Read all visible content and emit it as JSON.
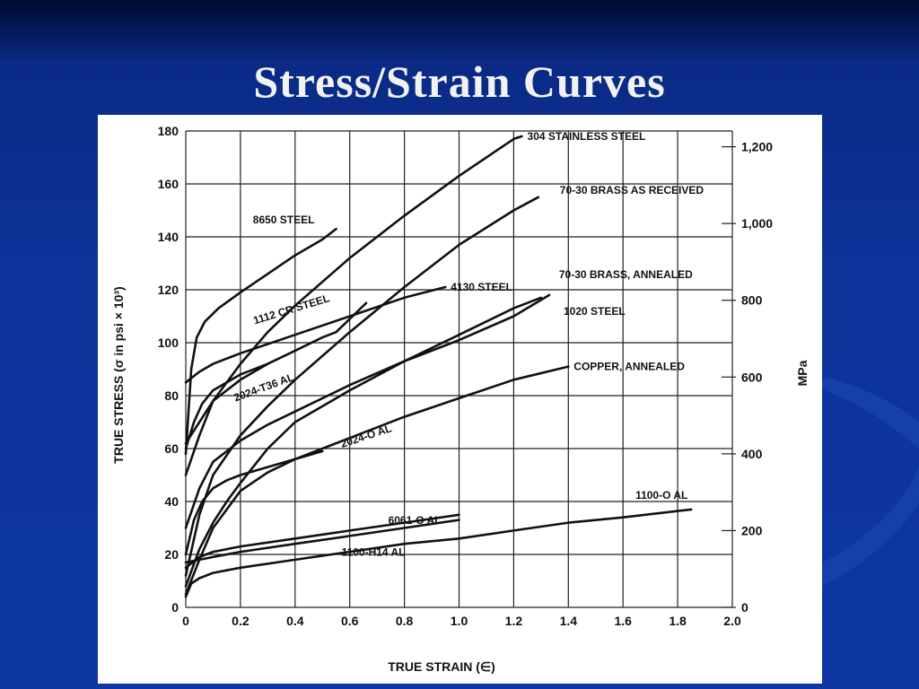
{
  "slide": {
    "title": "Stress/Strain Curves"
  },
  "chart_data": {
    "type": "line",
    "xlabel": "TRUE STRAIN (∈)",
    "ylabel": "TRUE STRESS (σ in psi × 10³)",
    "y2label": "MPa",
    "xlim": [
      0,
      2.0
    ],
    "ylim": [
      0,
      180
    ],
    "x_ticks": [
      "0",
      "0.2",
      "0.4",
      "0.6",
      "0.8",
      "1.0",
      "1.2",
      "1.4",
      "1.6",
      "1.8",
      "2.0"
    ],
    "y_ticks": [
      "0",
      "20",
      "40",
      "60",
      "80",
      "100",
      "120",
      "140",
      "160",
      "180"
    ],
    "y2_ticks": [
      "0",
      "200",
      "400",
      "600",
      "800",
      "1,000",
      "1,200"
    ],
    "grid": true,
    "series": [
      {
        "name": "304 STAINLESS STEEL",
        "x": [
          0,
          0.05,
          0.1,
          0.2,
          0.3,
          0.4,
          0.6,
          0.8,
          1.0,
          1.2,
          1.23
        ],
        "y": [
          50,
          65,
          78,
          92,
          104,
          114,
          132,
          148,
          163,
          177,
          178
        ]
      },
      {
        "name": "8650 STEEL",
        "x": [
          0,
          0.02,
          0.04,
          0.07,
          0.12,
          0.2,
          0.3,
          0.4,
          0.5,
          0.55
        ],
        "y": [
          58,
          90,
          102,
          108,
          113,
          119,
          126,
          133,
          139,
          143
        ]
      },
      {
        "name": "70-30 BRASS AS RECEIVED",
        "x": [
          0,
          0.05,
          0.1,
          0.2,
          0.3,
          0.4,
          0.6,
          0.8,
          1.0,
          1.2,
          1.29
        ],
        "y": [
          12,
          35,
          50,
          65,
          76,
          86,
          104,
          121,
          137,
          150,
          155
        ]
      },
      {
        "name": "70-30 BRASS, ANNEALED",
        "x": [
          0,
          0.05,
          0.1,
          0.15,
          0.2,
          0.3,
          0.4,
          0.6,
          0.8,
          1.0,
          1.2,
          1.3
        ],
        "y": [
          8,
          22,
          32,
          40,
          47,
          60,
          70,
          82,
          93,
          103,
          113,
          117
        ]
      },
      {
        "name": "4130 STEEL",
        "x": [
          0,
          0.05,
          0.1,
          0.2,
          0.4,
          0.6,
          0.8,
          0.95
        ],
        "y": [
          85,
          89,
          92,
          96,
          103,
          110,
          117,
          121
        ]
      },
      {
        "name": "1112 CR STEEL",
        "x": [
          0,
          0.05,
          0.1,
          0.2,
          0.3,
          0.4,
          0.5,
          0.55,
          0.66
        ],
        "y": [
          62,
          70,
          78,
          86,
          92,
          97,
          102,
          104,
          115
        ]
      },
      {
        "name": "1020 STEEL",
        "x": [
          0,
          0.05,
          0.1,
          0.2,
          0.3,
          0.4,
          0.6,
          0.8,
          1.0,
          1.2,
          1.33
        ],
        "y": [
          30,
          45,
          55,
          63,
          69,
          74,
          84,
          93,
          101,
          110,
          118
        ]
      },
      {
        "name": "2024-T36 AL",
        "x": [
          0,
          0.03,
          0.06,
          0.1,
          0.15,
          0.2,
          0.3
        ],
        "y": [
          60,
          70,
          77,
          82,
          85,
          88,
          92
        ]
      },
      {
        "name": "COPPER, ANNEALED",
        "x": [
          0,
          0.05,
          0.1,
          0.2,
          0.3,
          0.4,
          0.6,
          0.8,
          1.0,
          1.2,
          1.4
        ],
        "y": [
          5,
          18,
          30,
          44,
          51,
          56,
          64,
          72,
          79,
          86,
          91
        ]
      },
      {
        "name": "2024-O AL",
        "x": [
          0,
          0.03,
          0.06,
          0.1,
          0.15,
          0.2,
          0.3,
          0.4,
          0.5
        ],
        "y": [
          20,
          33,
          40,
          45,
          48,
          50,
          53,
          56,
          59
        ]
      },
      {
        "name": "6061-O AL",
        "x": [
          0,
          0.05,
          0.1,
          0.2,
          0.4,
          0.6,
          0.8,
          1.0
        ],
        "y": [
          15,
          19,
          21,
          23,
          26,
          29,
          32,
          35
        ]
      },
      {
        "name": "1100-H14 AL",
        "x": [
          0,
          0.05,
          0.1,
          0.2,
          0.4,
          0.6,
          0.8,
          1.0
        ],
        "y": [
          17,
          18,
          19,
          21,
          24,
          27,
          30,
          33
        ]
      },
      {
        "name": "1100-O AL",
        "x": [
          0,
          0.02,
          0.05,
          0.1,
          0.2,
          0.4,
          0.6,
          0.8,
          1.0,
          1.2,
          1.4,
          1.6,
          1.85
        ],
        "y": [
          4,
          9,
          11,
          13,
          15,
          18,
          21,
          24,
          26,
          29,
          32,
          34,
          37
        ]
      }
    ]
  }
}
